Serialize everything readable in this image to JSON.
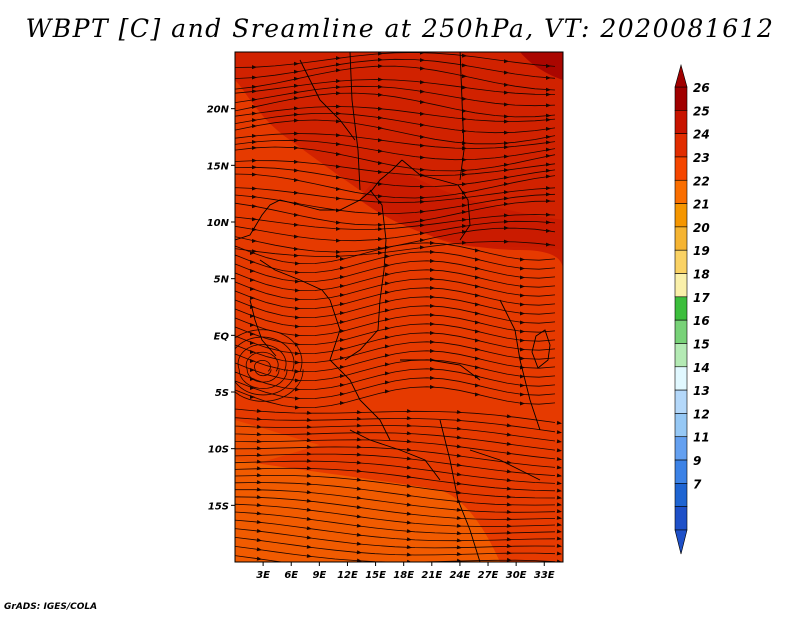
{
  "title": "WBPT [C] and Sreamline at 250hPa, VT: 2020081612",
  "footer": "GrADS: IGES/COLA",
  "map": {
    "lon_range": [
      0,
      35
    ],
    "lat_range": [
      -20,
      25
    ],
    "x_ticks": [
      "3E",
      "6E",
      "9E",
      "12E",
      "15E",
      "18E",
      "21E",
      "24E",
      "27E",
      "30E",
      "33E"
    ],
    "x_tick_values": [
      3,
      6,
      9,
      12,
      15,
      18,
      21,
      24,
      27,
      30,
      33
    ],
    "y_ticks": [
      "20N",
      "15N",
      "10N",
      "5N",
      "EQ",
      "5S",
      "10S",
      "15S"
    ],
    "y_tick_values": [
      20,
      15,
      10,
      5,
      0,
      -5,
      -10,
      -15
    ]
  },
  "colorbar": {
    "labels": [
      "26",
      "25",
      "24",
      "23",
      "22",
      "21",
      "20",
      "19",
      "18",
      "17",
      "16",
      "15",
      "14",
      "13",
      "12",
      "11",
      "9",
      "7"
    ],
    "colors": [
      "#a00000",
      "#c81400",
      "#e12d00",
      "#f54600",
      "#fa6e00",
      "#f59600",
      "#f5b432",
      "#fad264",
      "#faf0aa",
      "#3cbe3c",
      "#78d278",
      "#b4eab4",
      "#e1f8ff",
      "#b4d8fa",
      "#96c8f5",
      "#64a0f0",
      "#3c82e6",
      "#1e64d2",
      "#1e50c8"
    ]
  },
  "colors": {
    "field_dark": "#c91b00",
    "field_mid": "#e63a00",
    "field_light": "#f26100"
  }
}
